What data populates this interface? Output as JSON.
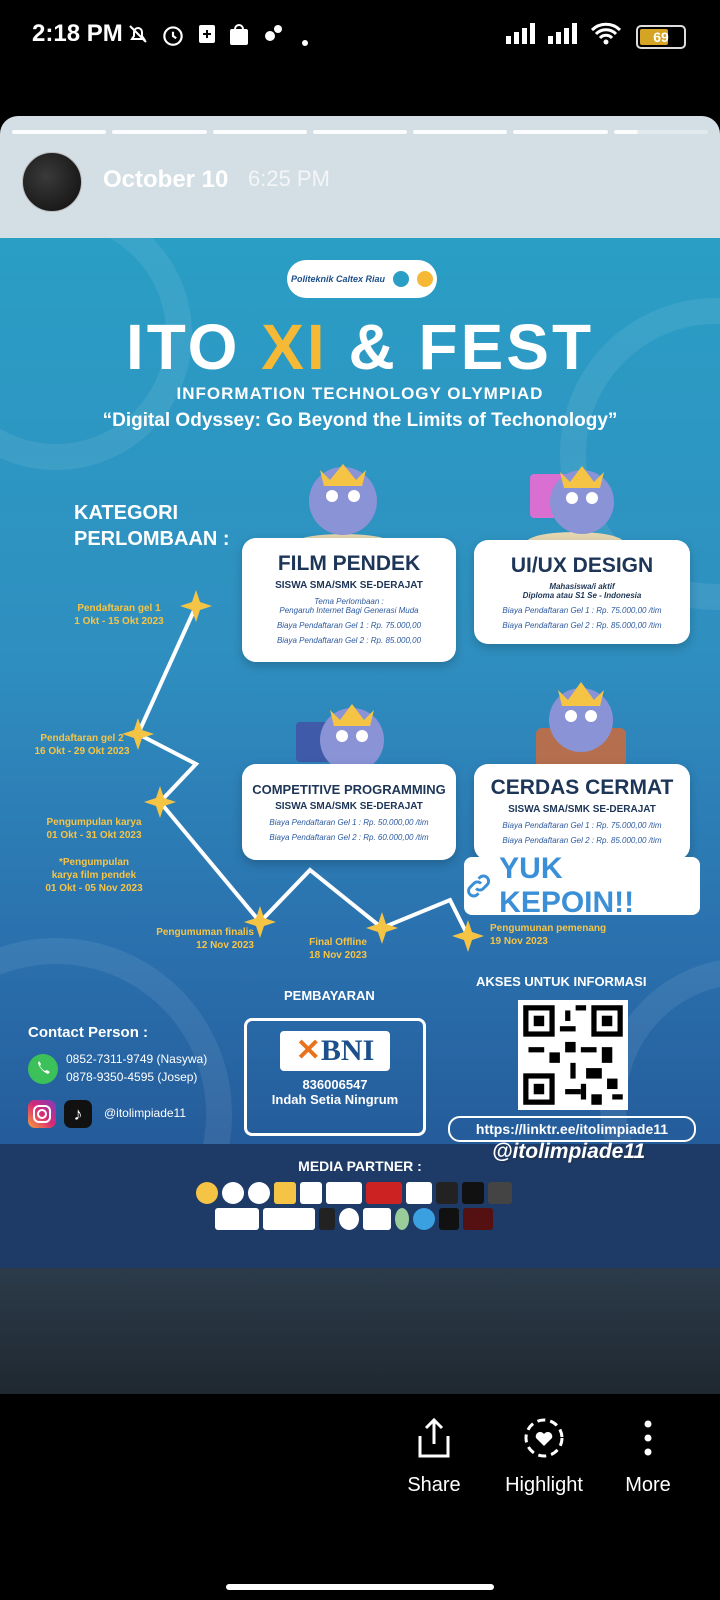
{
  "status_bar": {
    "time": "2:18 PM",
    "battery": "69",
    "icons": [
      "mute-bell-icon",
      "alarm-icon",
      "plus-app-icon",
      "shop-bag-icon",
      "settings-icon",
      "dot-icon",
      "signal-icon",
      "signal-icon",
      "wifi-icon",
      "battery-icon"
    ]
  },
  "story": {
    "date": "October 10",
    "time": "6:25 PM",
    "progress_segments": 6
  },
  "poster": {
    "logo_text": "Politeknik Caltex Riau",
    "title_a": "ITO ",
    "title_b": "XI",
    "title_c": " & FEST",
    "subtitle": "INFORMATION TECHNOLOGY OLYMPIAD",
    "tagline": "“Digital Odyssey: Go Beyond the Limits of Techonology”",
    "kategori": "KATEGORI PERLOMBAAN :",
    "cards": [
      {
        "title": "FILM PENDEK",
        "sub": "SISWA SMA/SMK SE-DERAJAT",
        "theme_label": "Tema Perlombaan :",
        "theme": "Pengaruh Internet Bagi Generasi Muda",
        "fee1": "Biaya Pendaftaran Gel 1 : Rp. 75.000,00",
        "fee2": "Biaya Pendaftaran Gel 2 : Rp. 85.000,00"
      },
      {
        "title": "UI/UX DESIGN",
        "sub": "Mahasiswa/i aktif",
        "sub2": "Diploma atau S1 Se - Indonesia",
        "fee1": "Biaya Pendaftaran Gel 1 : Rp. 75.000,00 /tim",
        "fee2": "Biaya Pendaftaran Gel 2 : Rp. 85.000,00 /tim"
      },
      {
        "title": "COMPETITIVE PROGRAMMING",
        "sub": "SISWA SMA/SMK SE-DERAJAT",
        "fee1": "Biaya Pendaftaran Gel 1 : Rp. 50.000,00 /tim",
        "fee2": "Biaya Pendaftaran Gel 2 : Rp. 60.000,00 /tim"
      },
      {
        "title": "CERDAS CERMAT",
        "sub": "SISWA SMA/SMK SE-DERAJAT",
        "fee1": "Biaya Pendaftaran Gel 1 : Rp. 75.000,00 /tim",
        "fee2": "Biaya Pendaftaran Gel 2 : Rp. 85.000,00 /tim"
      }
    ],
    "timeline": [
      {
        "l1": "Pendaftaran gel 1",
        "l2": "1 Okt - 15 Okt 2023"
      },
      {
        "l1": "Pendaftaran gel 2",
        "l2": "16 Okt - 29 Okt 2023"
      },
      {
        "l1": "Pengumpulan karya",
        "l2": "01 Okt - 31 Okt 2023"
      },
      {
        "l1": "*Pengumpulan",
        "l2": "karya film pendek",
        "l3": "01 Okt - 05 Nov 2023"
      },
      {
        "l1": "Pengumuman finalis",
        "l2": "12 Nov 2023"
      },
      {
        "l1": "Final Offline",
        "l2": "18 Nov 2023"
      },
      {
        "l1": "Pengumunan pemenang",
        "l2": "19 Nov 2023"
      }
    ],
    "yuk_kepoin": "YUK KEPOIN!!",
    "contact_title": "Contact Person :",
    "contact1": "0852-7311-9749 (Nasywa)",
    "contact2": "0878-9350-4595 (Josep)",
    "social_handle": "@itolimpiade11",
    "pembayaran": "PEMBAYARAN",
    "bni_logo": "BNI",
    "account_number": "836006547",
    "account_name": "Indah Setia Ningrum",
    "akses": "AKSES UNTUK INFORMASI",
    "link": "https://linktr.ee/itolimpiade11",
    "handle_big": "@itolimpiade11",
    "media_partner": "MEDIA PARTNER :"
  },
  "actions": [
    {
      "label": "Share",
      "icon": "share-icon"
    },
    {
      "label": "Highlight",
      "icon": "highlight-heart-icon"
    },
    {
      "label": "More",
      "icon": "more-vertical-icon"
    }
  ],
  "colors": {
    "accent_yellow": "#f6c445",
    "poster_blue": "#2a8fc0",
    "card_text": "#1d3557"
  }
}
